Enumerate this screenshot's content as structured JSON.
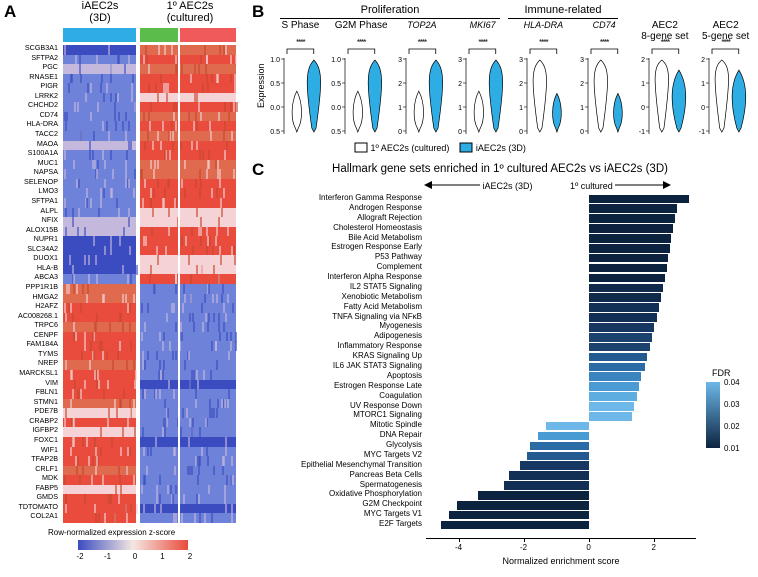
{
  "panelA": {
    "label": "A",
    "header1": {
      "text": "iAEC2s\n(3D)",
      "bar": "#2dade4"
    },
    "header2": {
      "text": "1º AEC2s\n(cultured)",
      "bar1": "#5bbb4b",
      "bar2": "#f15a5a"
    },
    "genes": [
      "SCGB3A1",
      "SFTPA2",
      "PGC",
      "RNASE1",
      "PIGR",
      "LRRK2",
      "CHCHD2",
      "CD74",
      "HLA-DRA",
      "TACC2",
      "MAOA",
      "S100A1A",
      "MUC1",
      "NAPSA",
      "SELENOP",
      "LMO3",
      "SFTPA1",
      "ALPL",
      "NFIX",
      "ALOX15B",
      "NUPR1",
      "SLC34A2",
      "DUOX1",
      "HLA-B",
      "ABCA3",
      "PPP1R1B",
      "HMGA2",
      "H2AFZ",
      "AC008268.1",
      "TRPC6",
      "CENPF",
      "FAM184A",
      "TYMS",
      "NREP",
      "MARCKSL1",
      "VIM",
      "FBLN1",
      "STMN1",
      "PDE7B",
      "CRABP2",
      "IGFBP2",
      "FOXC1",
      "WIF1",
      "TFAP2B",
      "CRLF1",
      "MDK",
      "FABP5",
      "GMDS",
      "TDTOMATO",
      "COL2A1"
    ],
    "legendTitle": "Row-normalized expression z-score",
    "legendTicks": [
      "-2",
      "-1",
      "0",
      "1",
      "2"
    ],
    "colors": {
      "low": "#3b4cc0",
      "mid": "#f4e7e1",
      "high": "#e94b3c",
      "pink": "#f4d2d6",
      "lilac": "#c5b8dd",
      "blue": "#6f82d9"
    }
  },
  "panelB": {
    "label": "B",
    "groupTitles": {
      "prolif": "Proliferation",
      "immune": "Immune-related"
    },
    "violins": [
      {
        "title": "S Phase",
        "italic": false,
        "ticks": [
          "1.0",
          "0.5",
          "0.0",
          "-0.5"
        ],
        "sig": "****"
      },
      {
        "title": "G2M Phase",
        "italic": false,
        "ticks": [
          "1.0",
          "0.5",
          "0.0",
          "-0.5"
        ],
        "sig": "****"
      },
      {
        "title": "TOP2A",
        "italic": true,
        "ticks": [
          "3",
          "2",
          "1",
          "0"
        ],
        "sig": "****"
      },
      {
        "title": "MKI67",
        "italic": true,
        "ticks": [
          "3",
          "2",
          "1",
          "0"
        ],
        "sig": "****"
      },
      {
        "title": "HLA-DRA",
        "italic": true,
        "ticks": [
          "3",
          "2",
          "1",
          "0"
        ],
        "sig": "****"
      },
      {
        "title": "CD74",
        "italic": true,
        "ticks": [
          "3",
          "2",
          "1",
          "0"
        ],
        "sig": "****"
      },
      {
        "title": "AEC2\n8-gene set",
        "italic": false,
        "ticks": [
          "2",
          "1",
          "0",
          "-1"
        ],
        "sig": "****"
      },
      {
        "title": "AEC2\n5-gene set",
        "italic": false,
        "ticks": [
          "2",
          "1",
          "0",
          "-1"
        ],
        "sig": "****"
      }
    ],
    "yLabel": "Expression",
    "legend": {
      "left": "1º AEC2s (cultured)",
      "right": "iAEC2s (3D)",
      "leftColor": "#ffffff",
      "rightColor": "#2dade4",
      "stroke": "#000"
    }
  },
  "panelC": {
    "label": "C",
    "title": "Hallmark gene sets enriched in 1º cultured AEC2s vs iAEC2s (3D)",
    "arrowLeft": "iAEC2s (3D)",
    "arrowRight": "1º cultured",
    "xLabel": "Normalized enrichment score",
    "xTicks": [
      "-4",
      "-2",
      "0",
      "2"
    ],
    "fdr": {
      "title": "FDR",
      "ticks": [
        "0.04",
        "0.03",
        "0.02",
        "0.01"
      ],
      "top": "#6db8e8",
      "bottom": "#0c2340"
    },
    "bars": [
      {
        "l": "Interferon Gamma Response",
        "v": 3.09,
        "c": "#0c2340"
      },
      {
        "l": "Androgen Response",
        "v": 2.73,
        "c": "#0c2340"
      },
      {
        "l": "Allograft Rejection",
        "v": 2.67,
        "c": "#0c2340"
      },
      {
        "l": "Cholesterol Homeostasis",
        "v": 2.58,
        "c": "#0c2340"
      },
      {
        "l": "Bile Acid Metabolism",
        "v": 2.53,
        "c": "#0c2340"
      },
      {
        "l": "Estrogen Response Early",
        "v": 2.5,
        "c": "#0c2340"
      },
      {
        "l": "P53 Pathway",
        "v": 2.45,
        "c": "#0c2340"
      },
      {
        "l": "Complement",
        "v": 2.4,
        "c": "#0c2340"
      },
      {
        "l": "Interferon Alpha Response",
        "v": 2.35,
        "c": "#0c2340"
      },
      {
        "l": "IL2 STAT5 Signaling",
        "v": 2.28,
        "c": "#0f2a4a"
      },
      {
        "l": "Xenobiotic Metabolism",
        "v": 2.22,
        "c": "#0f2a4a"
      },
      {
        "l": "Fatty Acid Metabolism",
        "v": 2.15,
        "c": "#123056"
      },
      {
        "l": "TNFA Signaling via NFκB",
        "v": 2.1,
        "c": "#123056"
      },
      {
        "l": "Myogenesis",
        "v": 2.02,
        "c": "#163761"
      },
      {
        "l": "Adipogenesis",
        "v": 1.95,
        "c": "#1b436e"
      },
      {
        "l": "Inflammatory Response",
        "v": 1.88,
        "c": "#1b436e"
      },
      {
        "l": "KRAS Signaling Up",
        "v": 1.8,
        "c": "#235a90"
      },
      {
        "l": "IL6 JAK STAT3 Signaling",
        "v": 1.72,
        "c": "#2b6ca7"
      },
      {
        "l": "Apoptosis",
        "v": 1.62,
        "c": "#3a85c0"
      },
      {
        "l": "Estrogen Response Late",
        "v": 1.55,
        "c": "#4a9bd3"
      },
      {
        "l": "Coagulation",
        "v": 1.48,
        "c": "#5dade0"
      },
      {
        "l": "UV Response Down",
        "v": 1.4,
        "c": "#6db8e8"
      },
      {
        "l": "MTORC1 Signaling",
        "v": 1.32,
        "c": "#6db8e8"
      },
      {
        "l": "Mitotic Spindle",
        "v": -1.32,
        "c": "#6db8e8"
      },
      {
        "l": "DNA Repair",
        "v": -1.57,
        "c": "#4a9bd3"
      },
      {
        "l": "Glycolysis",
        "v": -1.8,
        "c": "#2b6ca7"
      },
      {
        "l": "MYC Targets V2",
        "v": -1.9,
        "c": "#235a90"
      },
      {
        "l": "Epithelial Mesenchymal Transition",
        "v": -2.1,
        "c": "#163761"
      },
      {
        "l": "Pancreas Beta Cells",
        "v": -2.45,
        "c": "#123056"
      },
      {
        "l": "Spermatogenesis",
        "v": -2.6,
        "c": "#123056"
      },
      {
        "l": "Oxidative Phosphorylation",
        "v": -3.4,
        "c": "#0c2340"
      },
      {
        "l": "G2M Checkpoint",
        "v": -4.05,
        "c": "#0c2340"
      },
      {
        "l": "MYC Targets V1",
        "v": -4.3,
        "c": "#0c2340"
      },
      {
        "l": "E2F Targets",
        "v": -4.55,
        "c": "#0c2340"
      }
    ]
  }
}
